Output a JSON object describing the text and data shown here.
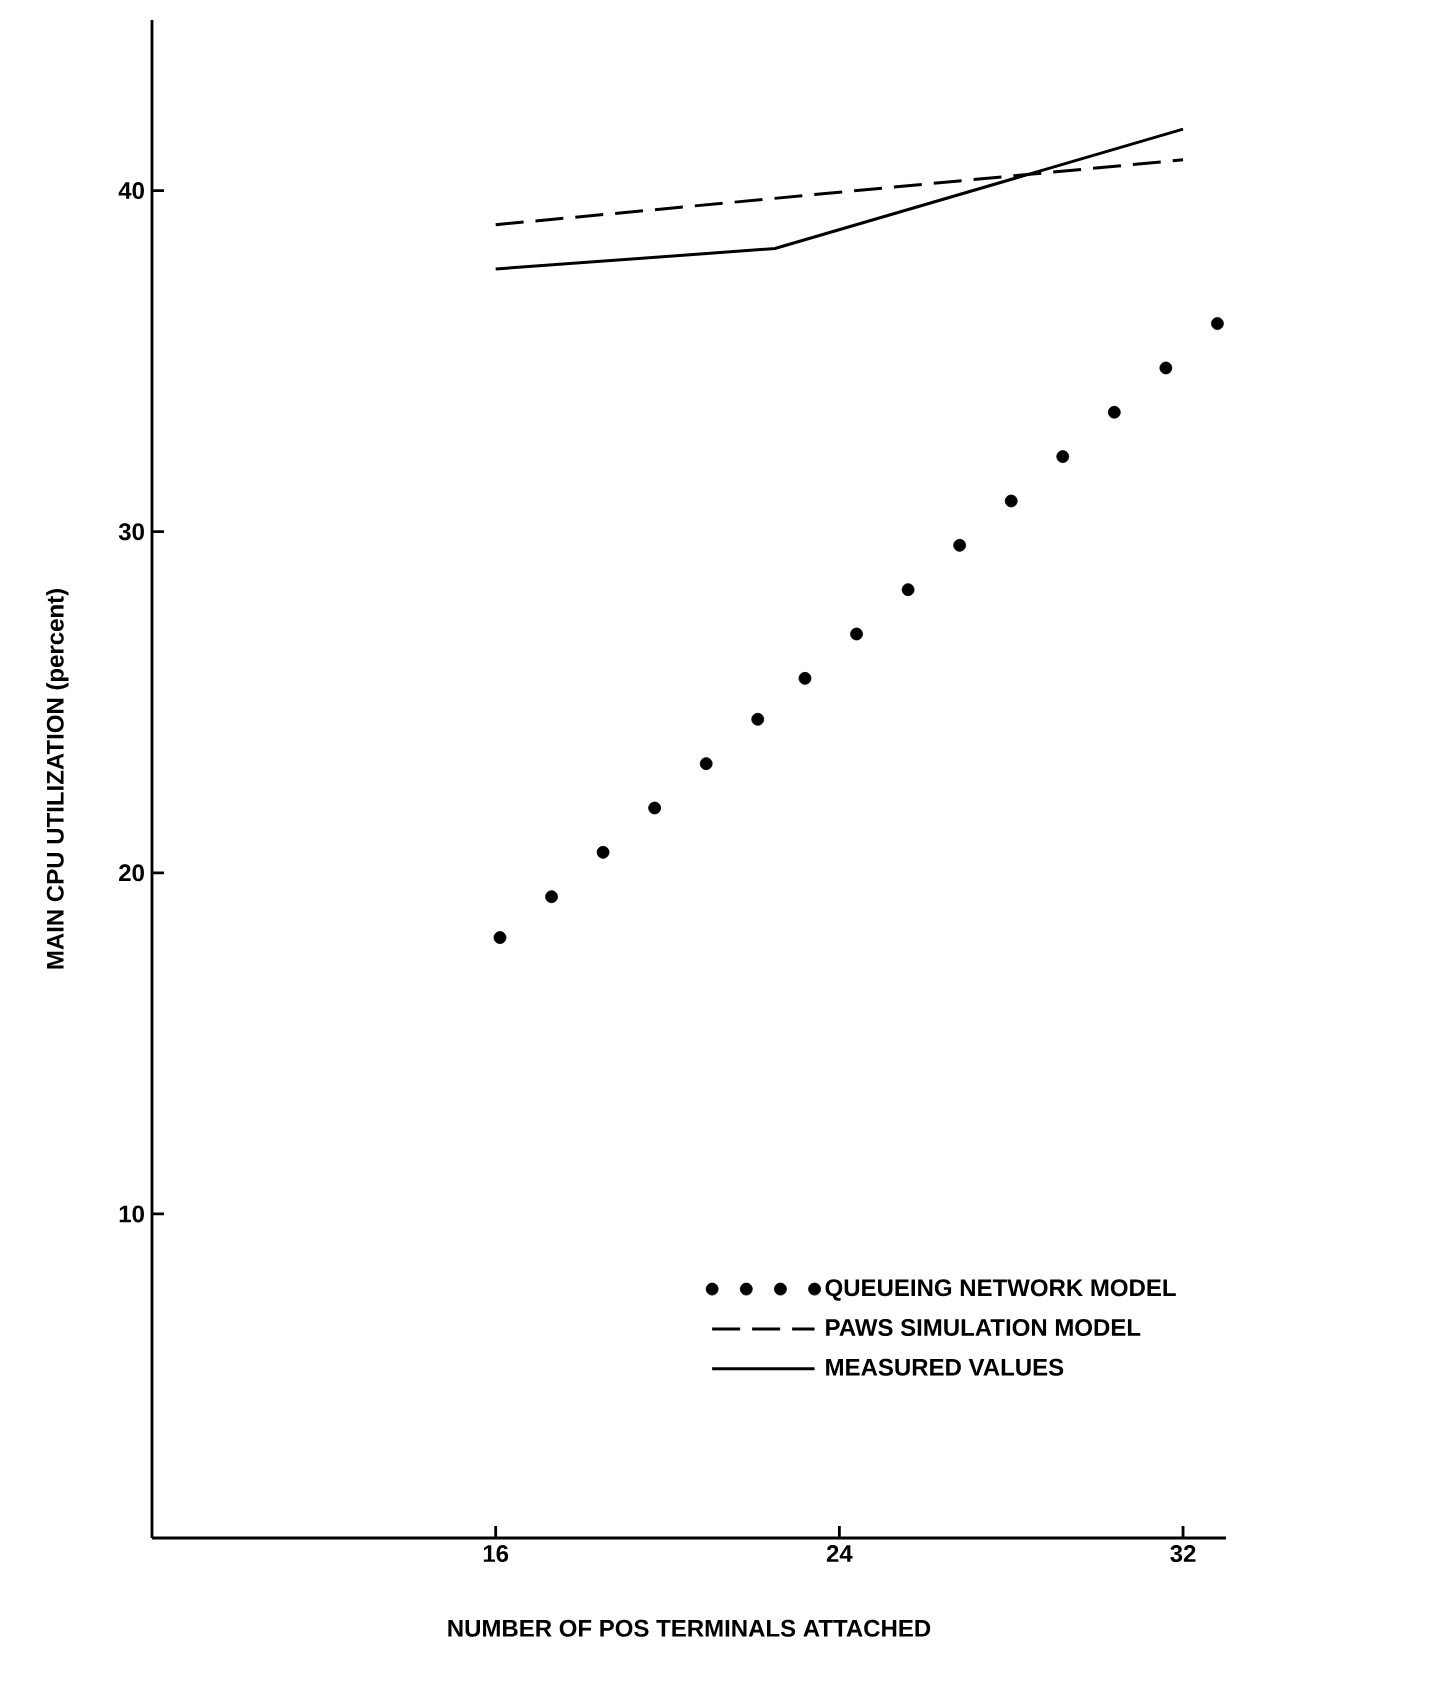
{
  "chart_data": {
    "type": "line",
    "xlabel": "NUMBER OF POS TERMINALS ATTACHED",
    "ylabel": "MAIN CPU UTILIZATION (percent)",
    "xlim": [
      8,
      33
    ],
    "xticks": [
      16,
      24,
      32
    ],
    "ylim": [
      0.5,
      45
    ],
    "yticks": [
      10,
      20,
      30,
      40
    ],
    "legend": "bottom right",
    "marker": "circle",
    "series": [
      {
        "name": "QUEUEING NETWORK MODEL",
        "type": "scatter",
        "color": "#000000",
        "x": [
          16.1,
          17.3,
          18.5,
          19.7,
          20.9,
          22.1,
          23.2,
          24.4,
          25.6,
          26.8,
          28.0,
          29.2,
          30.4,
          31.6,
          32.8
        ],
        "values": [
          18.1,
          19.3,
          20.6,
          21.9,
          23.2,
          24.5,
          25.7,
          27.0,
          28.3,
          29.6,
          30.9,
          32.2,
          33.5,
          34.8,
          36.1
        ]
      },
      {
        "name": "PAWS SIMULATION MODEL",
        "marker": "none",
        "line_style": "dashed",
        "color": "#000000",
        "x": [
          16,
          32
        ],
        "values": [
          39.0,
          40.9
        ]
      },
      {
        "name": "MEASURED VALUES",
        "marker": "none",
        "line_style": "solid",
        "color": "#000000",
        "x": [
          16,
          22.5,
          32
        ],
        "values": [
          37.7,
          38.3,
          41.8
        ]
      }
    ]
  }
}
